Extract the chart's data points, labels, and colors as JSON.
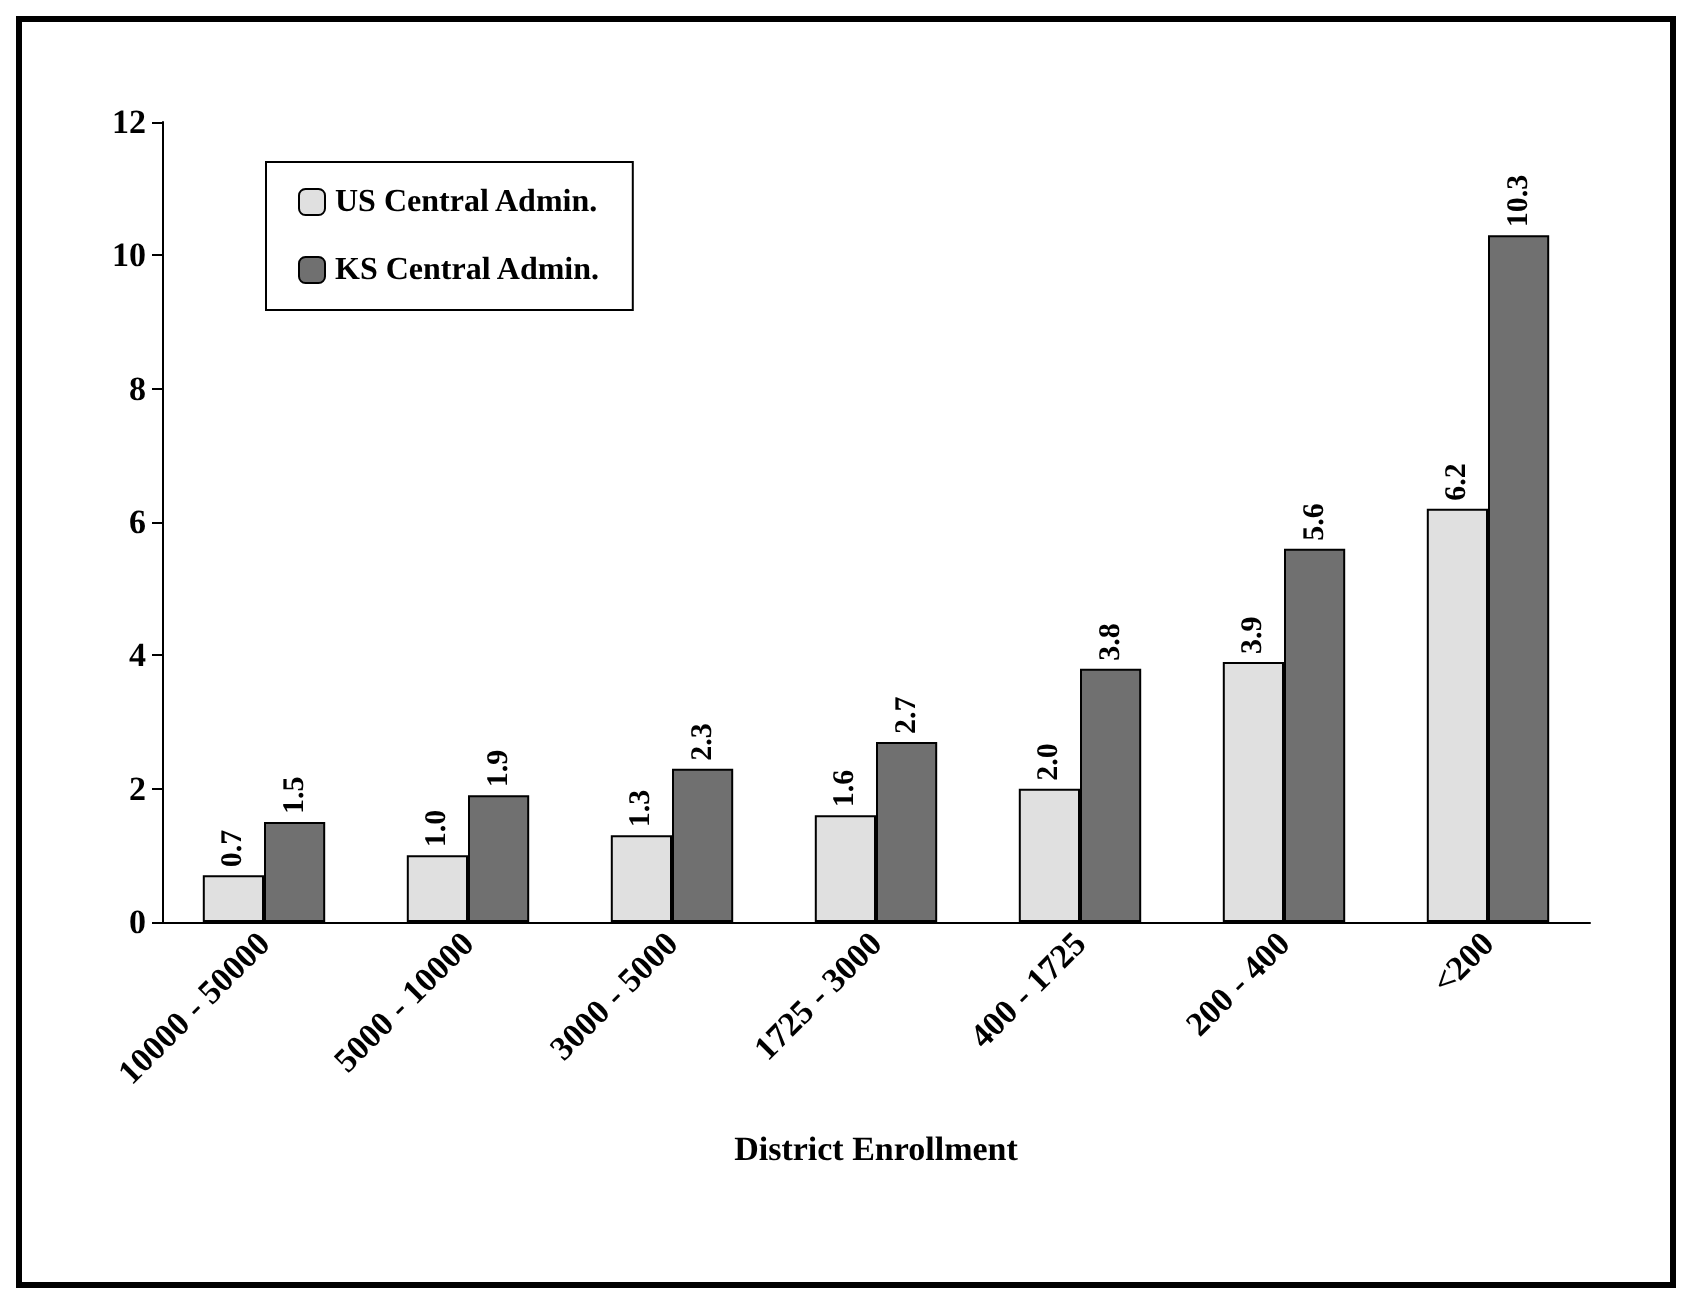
{
  "chart_data": {
    "type": "bar",
    "xlabel": "District Enrollment",
    "categories": [
      "10000 - 50000",
      "5000 - 10000",
      "3000 - 5000",
      "1725 - 3000",
      "400 - 1725",
      "200 - 400",
      "<200"
    ],
    "series": [
      {
        "name": "US Central Admin.",
        "color": "#e0e0e0",
        "values": [
          0.7,
          1.0,
          1.3,
          1.6,
          2.0,
          3.9,
          6.2
        ],
        "value_labels": [
          "0.7",
          "1.0",
          "1.3",
          "1.6",
          "2.0",
          "3.9",
          "6.2"
        ]
      },
      {
        "name": "KS Central Admin.",
        "color": "#707070",
        "values": [
          1.5,
          1.9,
          2.3,
          2.7,
          3.8,
          5.6,
          10.3
        ],
        "value_labels": [
          "1.5",
          "1.9",
          "2.3",
          "2.7",
          "3.8",
          "5.6",
          "10.3"
        ]
      }
    ],
    "ylim": [
      0,
      12
    ],
    "yticks": [
      0,
      2,
      4,
      6,
      8,
      10,
      12
    ],
    "grid": false,
    "legend": "top left"
  }
}
